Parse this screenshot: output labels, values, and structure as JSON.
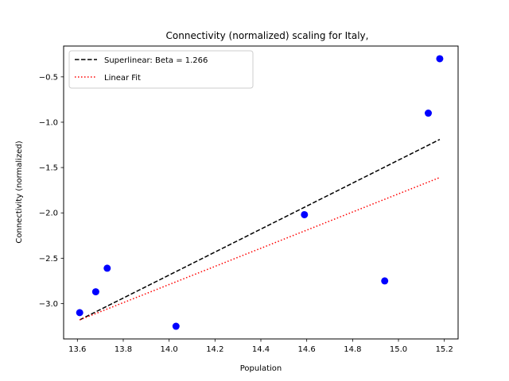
{
  "chart_data": {
    "type": "scatter",
    "title": "Connectivity (normalized) scaling for Italy,",
    "xlabel": "Population",
    "ylabel": "Connectivity (normalized)",
    "xlim": [
      13.54,
      15.26
    ],
    "ylim": [
      -3.39,
      -0.16
    ],
    "xticks": [
      13.6,
      13.8,
      14.0,
      14.2,
      14.4,
      14.6,
      14.8,
      15.0,
      15.2
    ],
    "xtick_labels": [
      "13.6",
      "13.8",
      "14.0",
      "14.2",
      "14.4",
      "14.6",
      "14.8",
      "15.0",
      "15.2"
    ],
    "yticks": [
      -3.0,
      -2.5,
      -2.0,
      -1.5,
      -1.0,
      -0.5
    ],
    "ytick_labels": [
      "−3.0",
      "−2.5",
      "−2.0",
      "−1.5",
      "−1.0",
      "−0.5"
    ],
    "grid": false,
    "legend_position": "top-left",
    "points": {
      "color": "#0000ff",
      "x": [
        13.61,
        13.68,
        13.73,
        14.03,
        14.59,
        14.94,
        15.13,
        15.18
      ],
      "y": [
        -3.1,
        -2.87,
        -2.61,
        -3.25,
        -2.02,
        -2.75,
        -0.9,
        -0.3
      ]
    },
    "series": [
      {
        "name": "Superlinear: Beta = 1.266",
        "style": "dashed",
        "color": "#000000",
        "x": [
          13.61,
          15.18
        ],
        "y": [
          -3.18,
          -1.19
        ]
      },
      {
        "name": "Linear Fit",
        "style": "dotted",
        "color": "#ff0000",
        "x": [
          13.61,
          15.18
        ],
        "y": [
          -3.18,
          -1.61
        ]
      }
    ]
  }
}
